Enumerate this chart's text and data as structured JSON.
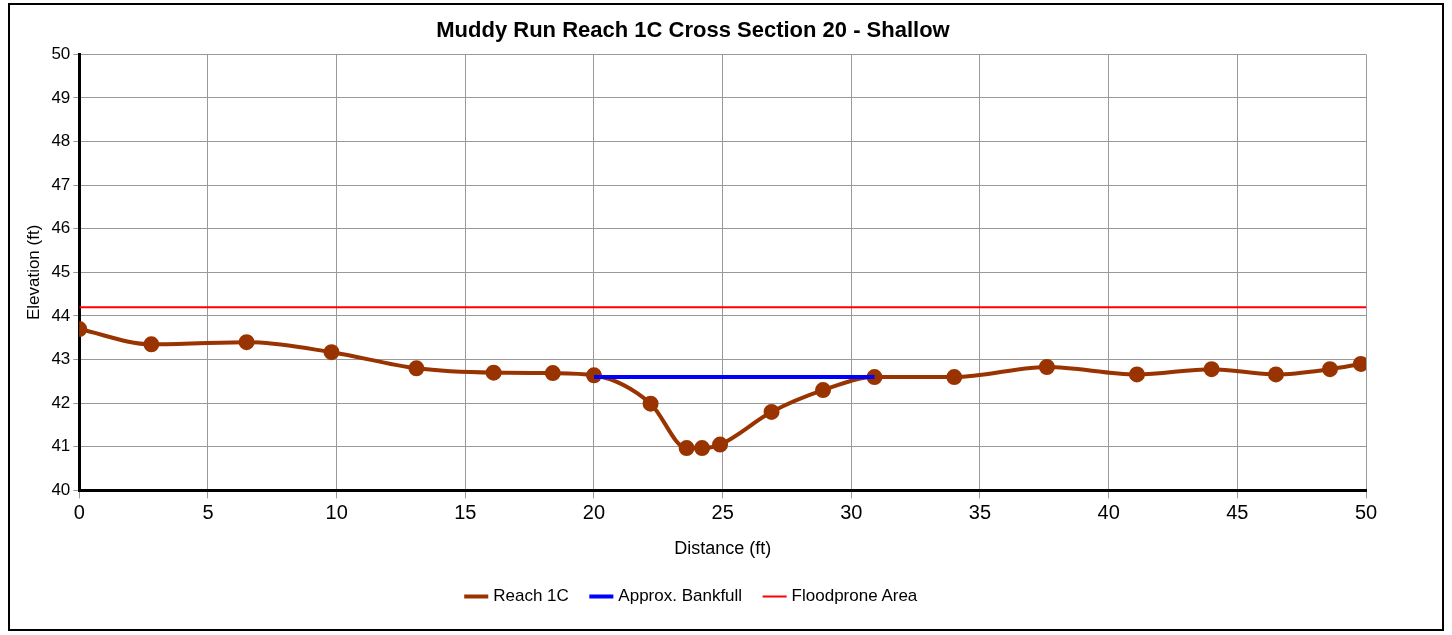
{
  "chart_data": {
    "type": "line",
    "title": "Muddy Run Reach 1C Cross Section 20 - Shallow",
    "xlabel": "Distance (ft)",
    "ylabel": "Elevation (ft)",
    "xlim": [
      0,
      50
    ],
    "xticks": [
      0,
      5,
      10,
      15,
      20,
      25,
      30,
      35,
      40,
      45,
      50
    ],
    "ylim": [
      40,
      50
    ],
    "yticks": [
      40,
      41,
      42,
      43,
      44,
      45,
      46,
      47,
      48,
      49,
      50
    ],
    "grid": true,
    "legend": "bottom",
    "series": [
      {
        "name": "Reach 1C",
        "color": "#993300",
        "marker": "circle",
        "x": [
          0,
          2.8,
          6.5,
          9.8,
          13.1,
          16.1,
          18.4,
          20.0,
          22.2,
          23.6,
          24.2,
          24.9,
          26.9,
          28.9,
          30.9,
          34.0,
          37.6,
          41.1,
          44.0,
          46.5,
          48.6,
          49.8
        ],
        "values": [
          43.7,
          43.35,
          43.4,
          43.17,
          42.8,
          42.7,
          42.69,
          42.64,
          41.99,
          40.97,
          40.97,
          41.05,
          41.8,
          42.3,
          42.6,
          42.6,
          42.83,
          42.66,
          42.78,
          42.66,
          42.78,
          42.9
        ]
      },
      {
        "name": "Approx. Bankfull",
        "color": "#0000ff",
        "marker": "none",
        "x": [
          20.0,
          30.9
        ],
        "values": [
          42.6,
          42.6
        ]
      },
      {
        "name": "Floodprone Area",
        "color": "#ff0000",
        "marker": "none",
        "x": [
          0,
          50
        ],
        "values": [
          44.2,
          44.2
        ]
      }
    ]
  }
}
